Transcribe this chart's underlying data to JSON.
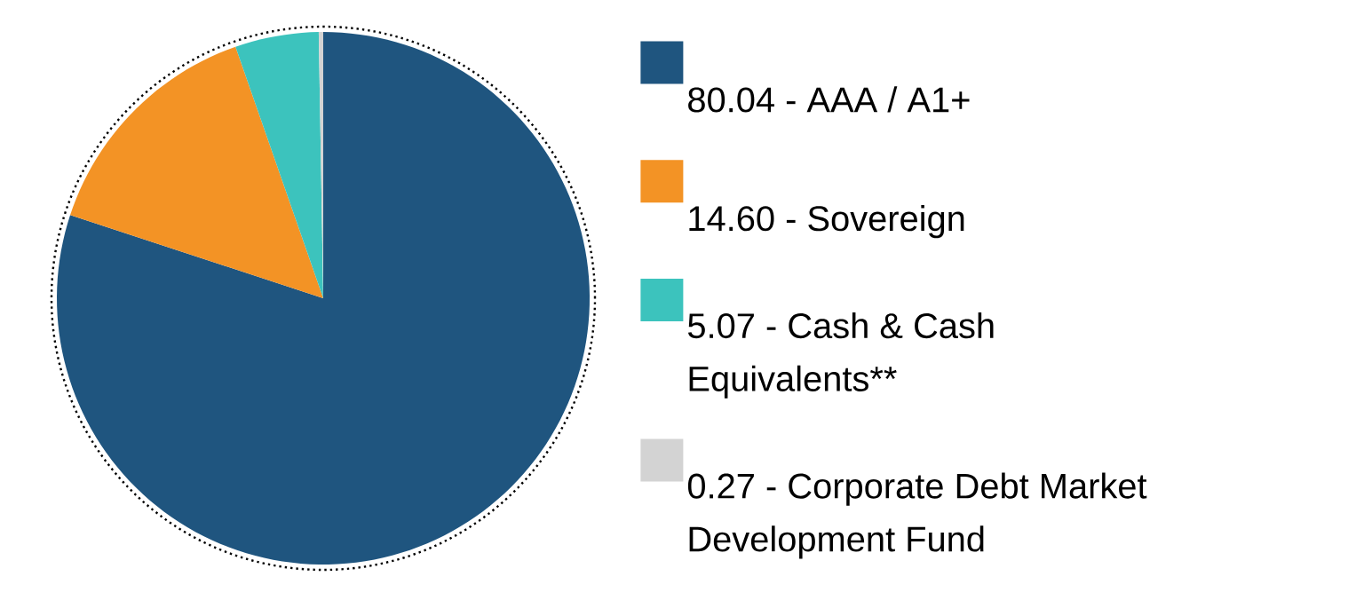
{
  "chart_data": {
    "type": "pie",
    "categories": [
      "80.04 - AAA  / A1+",
      "14.60 - Sovereign",
      "5.07 - Cash & Cash Equivalents**",
      "0.27 - Corporate Debt Market Development Fund"
    ],
    "values": [
      80.04,
      14.6,
      5.07,
      0.27
    ],
    "colors": [
      "#1f557f",
      "#f39325",
      "#3cc3bd",
      "#d3d3d3"
    ],
    "legend": "right"
  }
}
